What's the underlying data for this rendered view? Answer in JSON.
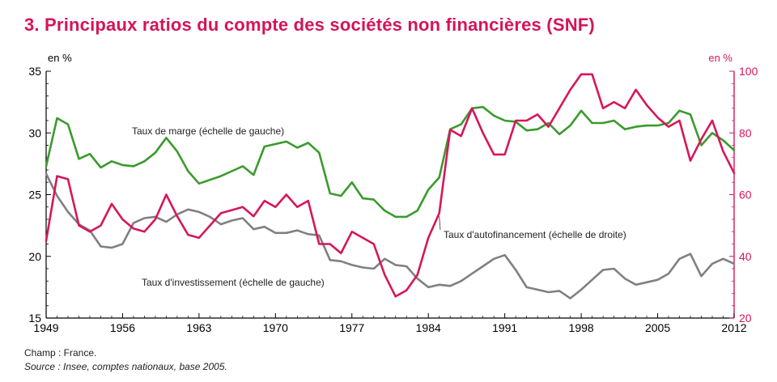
{
  "title": "3. Principaux ratios du compte des sociétés non financières (SNF)",
  "footer": {
    "scope": "Champ : France.",
    "source": "Source : Insee, comptes nationaux, base 2005."
  },
  "colors": {
    "title": "#d4145a",
    "marge": "#3b9a2e",
    "autofin": "#d6165b",
    "invest": "#808080",
    "axis": "#000000"
  },
  "chart_data": {
    "type": "line",
    "x_ticks": [
      1949,
      1956,
      1963,
      1970,
      1977,
      1984,
      1991,
      1998,
      2005,
      2012
    ],
    "xlim": [
      1949,
      2012
    ],
    "left_axis": {
      "unit": "en %",
      "ylim": [
        15,
        35
      ],
      "ticks": [
        15,
        20,
        25,
        30,
        35
      ]
    },
    "right_axis": {
      "unit": "en %",
      "ylim": [
        20,
        100
      ],
      "ticks": [
        20,
        40,
        60,
        80,
        100
      ]
    },
    "grid": false,
    "series": [
      {
        "name": "Taux de marge (échelle de gauche)",
        "axis": "left",
        "color": "#3b9a2e",
        "x": [
          1949,
          1950,
          1951,
          1952,
          1953,
          1954,
          1955,
          1956,
          1957,
          1958,
          1959,
          1960,
          1961,
          1962,
          1963,
          1964,
          1965,
          1966,
          1967,
          1968,
          1969,
          1970,
          1971,
          1972,
          1973,
          1974,
          1975,
          1976,
          1977,
          1978,
          1979,
          1980,
          1981,
          1982,
          1983,
          1984,
          1985,
          1986,
          1987,
          1988,
          1989,
          1990,
          1991,
          1992,
          1993,
          1994,
          1995,
          1996,
          1997,
          1998,
          1999,
          2000,
          2001,
          2002,
          2003,
          2004,
          2005,
          2006,
          2007,
          2008,
          2009,
          2010,
          2011,
          2012
        ],
        "values": [
          27.3,
          31.2,
          30.7,
          27.9,
          28.3,
          27.2,
          27.7,
          27.4,
          27.3,
          27.7,
          28.4,
          29.6,
          28.5,
          26.9,
          25.9,
          26.2,
          26.5,
          26.9,
          27.3,
          26.6,
          28.9,
          29.1,
          29.3,
          28.8,
          29.2,
          28.4,
          25.1,
          24.9,
          26.0,
          24.7,
          24.6,
          23.7,
          23.2,
          23.2,
          23.7,
          25.4,
          26.4,
          30.3,
          30.7,
          32.0,
          32.1,
          31.4,
          31.0,
          30.9,
          30.2,
          30.3,
          30.8,
          29.9,
          30.6,
          31.8,
          30.8,
          30.8,
          31.0,
          30.3,
          30.5,
          30.6,
          30.6,
          30.8,
          31.8,
          31.5,
          29.0,
          30.0,
          29.4,
          28.6
        ]
      },
      {
        "name": "Taux d'autofinancement (échelle de droite)",
        "axis": "right",
        "color": "#d6165b",
        "x": [
          1949,
          1950,
          1951,
          1952,
          1953,
          1954,
          1955,
          1956,
          1957,
          1958,
          1959,
          1960,
          1961,
          1962,
          1963,
          1964,
          1965,
          1966,
          1967,
          1968,
          1969,
          1970,
          1971,
          1972,
          1973,
          1974,
          1975,
          1976,
          1977,
          1978,
          1979,
          1980,
          1981,
          1982,
          1983,
          1984,
          1985,
          1986,
          1987,
          1988,
          1989,
          1990,
          1991,
          1992,
          1993,
          1994,
          1995,
          1996,
          1997,
          1998,
          1999,
          2000,
          2001,
          2002,
          2003,
          2004,
          2005,
          2006,
          2007,
          2008,
          2009,
          2010,
          2011,
          2012
        ],
        "values": [
          45,
          66,
          65,
          50,
          48,
          50,
          57,
          52,
          49,
          48,
          52,
          60,
          53,
          47,
          46,
          50,
          54,
          55,
          56,
          53,
          58,
          56,
          60,
          56,
          58,
          44,
          44,
          41,
          48,
          46,
          44,
          34,
          27,
          29,
          34,
          46,
          54,
          81,
          79,
          88,
          80,
          73,
          73,
          84,
          84,
          86,
          82,
          88,
          94,
          99,
          99,
          88,
          90,
          88,
          94,
          89,
          85,
          82,
          84,
          71,
          78,
          84,
          74,
          67
        ]
      },
      {
        "name": "Taux d'investissement (échelle de gauche)",
        "axis": "left",
        "color": "#808080",
        "x": [
          1949,
          1950,
          1951,
          1952,
          1953,
          1954,
          1955,
          1956,
          1957,
          1958,
          1959,
          1960,
          1961,
          1962,
          1963,
          1964,
          1965,
          1966,
          1967,
          1968,
          1969,
          1970,
          1971,
          1972,
          1973,
          1974,
          1975,
          1976,
          1977,
          1978,
          1979,
          1980,
          1981,
          1982,
          1983,
          1984,
          1985,
          1986,
          1987,
          1988,
          1989,
          1990,
          1991,
          1992,
          1993,
          1994,
          1995,
          1996,
          1997,
          1998,
          1999,
          2000,
          2001,
          2002,
          2003,
          2004,
          2005,
          2006,
          2007,
          2008,
          2009,
          2010,
          2011,
          2012
        ],
        "values": [
          26.7,
          24.9,
          23.6,
          22.6,
          22.1,
          20.8,
          20.7,
          21.0,
          22.7,
          23.1,
          23.2,
          22.8,
          23.4,
          23.8,
          23.6,
          23.2,
          22.6,
          22.9,
          23.1,
          22.2,
          22.4,
          21.9,
          21.9,
          22.1,
          21.8,
          21.7,
          19.7,
          19.6,
          19.3,
          19.1,
          19.0,
          19.8,
          19.3,
          19.2,
          18.2,
          17.5,
          17.7,
          17.6,
          18.0,
          18.6,
          19.2,
          19.8,
          20.1,
          18.9,
          17.5,
          17.3,
          17.1,
          17.2,
          16.6,
          17.3,
          18.1,
          18.9,
          19.0,
          18.2,
          17.7,
          17.9,
          18.1,
          18.6,
          19.8,
          20.2,
          18.4,
          19.4,
          19.8,
          19.4
        ]
      }
    ],
    "annotations": [
      {
        "text": "Taux de marge (échelle de gauche)",
        "series": 0
      },
      {
        "text": "Taux d'autofinancement (échelle de droite)",
        "series": 1
      },
      {
        "text": "Taux d'investissement (échelle de gauche)",
        "series": 2
      }
    ]
  }
}
